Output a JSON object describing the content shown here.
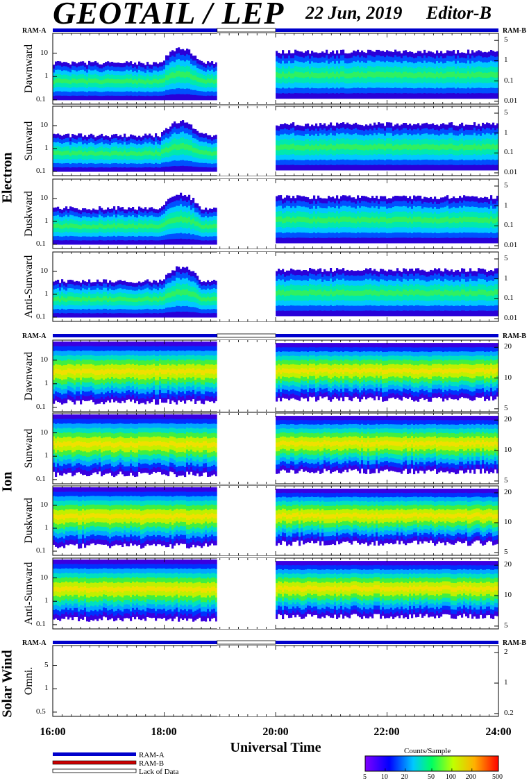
{
  "header": {
    "title": "GEOTAIL / LEP",
    "date": "22 Jun, 2019",
    "editor": "Editor-B"
  },
  "groups": {
    "electron": "Electron",
    "ion": "Ion",
    "solar_wind": "Solar Wind"
  },
  "ram": {
    "a": "RAM-A",
    "b": "RAM-B"
  },
  "legend": {
    "ram_a": "RAM-A",
    "ram_b": "RAM-B",
    "lack": "Lack of Data",
    "colorbar_title": "Counts/Sample",
    "colorbar_ticks": [
      "5",
      "10",
      "20",
      "50",
      "100",
      "200",
      "500"
    ],
    "colors": {
      "ram_a": "#0000cc",
      "ram_b": "#cc0000"
    }
  },
  "chart_data": {
    "type": "heatmap",
    "xlabel": "Universal Time",
    "x_ticks": [
      "16:00",
      "18:00",
      "20:00",
      "22:00",
      "24:00"
    ],
    "x_range": [
      "16:00",
      "24:00"
    ],
    "data_gap": [
      "18:57",
      "20:00"
    ],
    "panels": [
      {
        "group": "Electron",
        "label": "Dawnward",
        "left_ticks": [
          "10",
          "1",
          "0.1"
        ],
        "right_ticks": [
          "5",
          "1",
          "0.1",
          "0.01"
        ]
      },
      {
        "group": "Electron",
        "label": "Sunward",
        "left_ticks": [
          "10",
          "1",
          "0.1"
        ],
        "right_ticks": [
          "5",
          "1",
          "0.1",
          "0.01"
        ]
      },
      {
        "group": "Electron",
        "label": "Duskward",
        "left_ticks": [
          "10",
          "1",
          "0.1"
        ],
        "right_ticks": [
          "5",
          "1",
          "0.1",
          "0.01"
        ]
      },
      {
        "group": "Electron",
        "label": "Anti-Sunward",
        "left_ticks": [
          "10",
          "1",
          "0.1"
        ],
        "right_ticks": [
          "5",
          "1",
          "0.1",
          "0.01"
        ]
      },
      {
        "group": "Ion",
        "label": "Dawnward",
        "left_ticks": [
          "10",
          "1",
          "0.1"
        ],
        "right_ticks": [
          "20",
          "10",
          "5"
        ]
      },
      {
        "group": "Ion",
        "label": "Sunward",
        "left_ticks": [
          "10",
          "1",
          "0.1"
        ],
        "right_ticks": [
          "20",
          "10",
          "5"
        ]
      },
      {
        "group": "Ion",
        "label": "Duskward",
        "left_ticks": [
          "10",
          "1",
          "0.1"
        ],
        "right_ticks": [
          "20",
          "10",
          "5"
        ]
      },
      {
        "group": "Ion",
        "label": "Anti-Sunward",
        "left_ticks": [
          "10",
          "1",
          "0.1"
        ],
        "right_ticks": [
          "20",
          "10",
          "5"
        ]
      },
      {
        "group": "Solar Wind",
        "label": "Omni.",
        "left_ticks": [
          "5",
          "1",
          "0.5"
        ],
        "right_ticks": [
          "2",
          "1",
          "0.2"
        ]
      }
    ],
    "colorbar": {
      "title": "Counts/Sample",
      "ticks": [
        5,
        10,
        20,
        50,
        100,
        200,
        500
      ],
      "scale": "log"
    }
  }
}
